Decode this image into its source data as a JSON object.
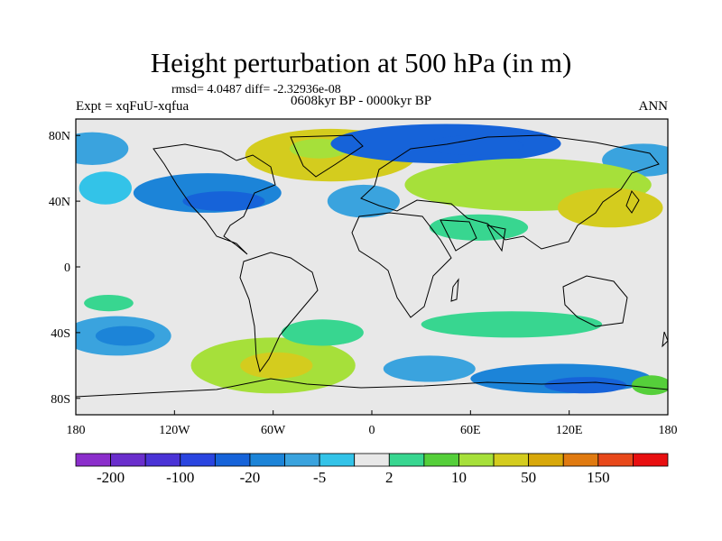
{
  "title": "Height perturbation at 500 hPa (in m)",
  "stats": "rmsd= 4.0487  diff= -2.32936e-08",
  "experiment": "Expt = xqFuU-xqfua",
  "period": "0608kyr BP - 0000kyr BP",
  "season": "ANN",
  "map": {
    "lon_range": [
      -180,
      180
    ],
    "lat_range": [
      -90,
      90
    ],
    "x_ticks": [
      {
        "lon": -180,
        "label": "180"
      },
      {
        "lon": -120,
        "label": "120W"
      },
      {
        "lon": -60,
        "label": "60W"
      },
      {
        "lon": 0,
        "label": "0"
      },
      {
        "lon": 60,
        "label": "60E"
      },
      {
        "lon": 120,
        "label": "120E"
      },
      {
        "lon": 180,
        "label": "180"
      }
    ],
    "y_ticks": [
      {
        "lat": 80,
        "label": "80N"
      },
      {
        "lat": 40,
        "label": "40N"
      },
      {
        "lat": 0,
        "label": "0"
      },
      {
        "lat": -40,
        "label": "40S"
      },
      {
        "lat": -80,
        "label": "80S"
      }
    ],
    "background_color": "#e8e8e8",
    "anomalies": [
      {
        "lon": -25,
        "lat": 68,
        "rx": 52,
        "ry": 16,
        "value": 30
      },
      {
        "lon": -32,
        "lat": 72,
        "rx": 18,
        "ry": 6,
        "value": 12
      },
      {
        "lon": 45,
        "lat": 75,
        "rx": 70,
        "ry": 12,
        "value": -25
      },
      {
        "lon": 62,
        "lat": 74,
        "rx": 30,
        "ry": 6,
        "value": -40
      },
      {
        "lon": -170,
        "lat": 72,
        "rx": 22,
        "ry": 10,
        "value": -6
      },
      {
        "lon": 165,
        "lat": 65,
        "rx": 25,
        "ry": 10,
        "value": -8
      },
      {
        "lon": -100,
        "lat": 45,
        "rx": 45,
        "ry": 12,
        "value": -12
      },
      {
        "lon": -90,
        "lat": 40,
        "rx": 25,
        "ry": 6,
        "value": -22
      },
      {
        "lon": -162,
        "lat": 48,
        "rx": 16,
        "ry": 10,
        "value": -5
      },
      {
        "lon": -5,
        "lat": 40,
        "rx": 22,
        "ry": 10,
        "value": -6
      },
      {
        "lon": 95,
        "lat": 50,
        "rx": 75,
        "ry": 16,
        "value": 10
      },
      {
        "lon": 145,
        "lat": 36,
        "rx": 32,
        "ry": 12,
        "value": 20
      },
      {
        "lon": 150,
        "lat": 33,
        "rx": 15,
        "ry": 5,
        "value": 40
      },
      {
        "lon": 65,
        "lat": 24,
        "rx": 30,
        "ry": 8,
        "value": 4
      },
      {
        "lon": -155,
        "lat": -42,
        "rx": 33,
        "ry": 12,
        "value": -8
      },
      {
        "lon": -150,
        "lat": -42,
        "rx": 18,
        "ry": 6,
        "value": -18
      },
      {
        "lon": -160,
        "lat": -22,
        "rx": 15,
        "ry": 5,
        "value": 4
      },
      {
        "lon": -60,
        "lat": -60,
        "rx": 50,
        "ry": 17,
        "value": 15
      },
      {
        "lon": -58,
        "lat": -60,
        "rx": 22,
        "ry": 8,
        "value": 40
      },
      {
        "lon": -30,
        "lat": -40,
        "rx": 25,
        "ry": 8,
        "value": 3
      },
      {
        "lon": 85,
        "lat": -35,
        "rx": 55,
        "ry": 8,
        "value": 3
      },
      {
        "lon": 35,
        "lat": -62,
        "rx": 28,
        "ry": 8,
        "value": -7
      },
      {
        "lon": 115,
        "lat": -68,
        "rx": 55,
        "ry": 9,
        "value": -15
      },
      {
        "lon": 130,
        "lat": -72,
        "rx": 25,
        "ry": 5,
        "value": -25
      },
      {
        "lon": 170,
        "lat": -72,
        "rx": 12,
        "ry": 6,
        "value": 5
      }
    ]
  },
  "colorbar": {
    "colors": [
      "#8b2ecb",
      "#6a2ecc",
      "#4a33d6",
      "#2a45e0",
      "#1663d9",
      "#1c84d8",
      "#3aa3de",
      "#33c3e8",
      "#e8e8e8",
      "#38d690",
      "#55cf3a",
      "#a6e03a",
      "#d4cc1e",
      "#d8a80a",
      "#e07a10",
      "#e8481a",
      "#e80f10"
    ],
    "labels": [
      {
        "after_box": 1,
        "text": "-200"
      },
      {
        "after_box": 3,
        "text": "-100"
      },
      {
        "after_box": 5,
        "text": "-20"
      },
      {
        "after_box": 7,
        "text": "-5"
      },
      {
        "after_box": 9,
        "text": "2"
      },
      {
        "after_box": 11,
        "text": "10"
      },
      {
        "after_box": 13,
        "text": "50"
      },
      {
        "after_box": 15,
        "text": "150"
      }
    ],
    "levels": [
      -250,
      -200,
      -150,
      -100,
      -50,
      -20,
      -10,
      -5,
      -2,
      2,
      5,
      10,
      20,
      50,
      100,
      150,
      200
    ]
  }
}
